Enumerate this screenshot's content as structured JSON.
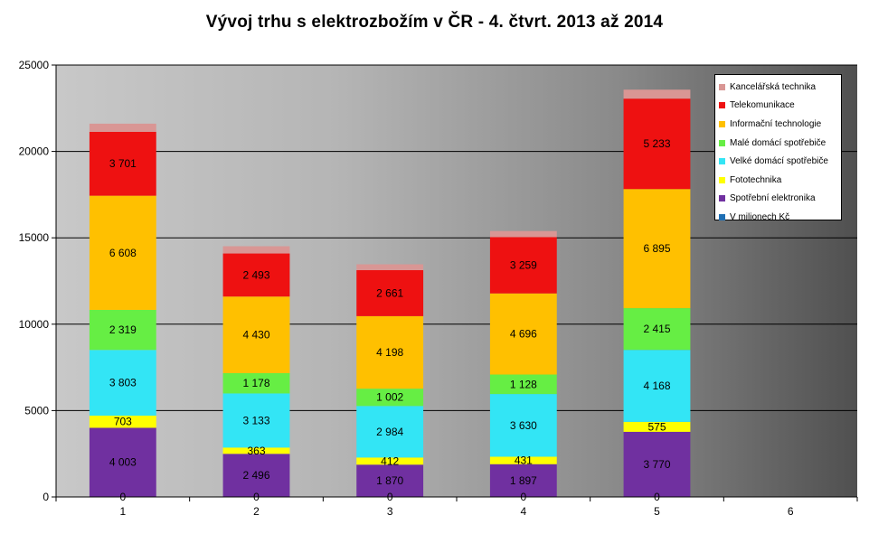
{
  "chart_data": {
    "type": "bar",
    "stacked": true,
    "title": "Vývoj trhu s elektrozbožím v ČR - 4. čtvrt. 2013 až 2014",
    "categories": [
      "1",
      "2",
      "3",
      "4",
      "5",
      "6"
    ],
    "ylim": [
      0,
      25000
    ],
    "yticks": [
      0,
      5000,
      10000,
      15000,
      20000,
      25000
    ],
    "ytick_labels": [
      "0",
      "5000",
      "10000",
      "15000",
      "20000",
      "25000"
    ],
    "grid": true,
    "legend_position": "top-right",
    "series": [
      {
        "name": "V milionech Kč",
        "color": "#1f6fb4",
        "values": [
          0,
          0,
          0,
          0,
          0,
          null
        ],
        "labels": [
          "0",
          "0",
          "0",
          "0",
          "0",
          ""
        ]
      },
      {
        "name": "Spotřební elektronika",
        "color": "#7030a0",
        "values": [
          4003,
          2496,
          1870,
          1897,
          3770,
          null
        ],
        "labels": [
          "4 003",
          "2 496",
          "1 870",
          "1 897",
          "3 770",
          ""
        ]
      },
      {
        "name": "Fototechnika",
        "color": "#ffff00",
        "values": [
          703,
          363,
          412,
          431,
          575,
          null
        ],
        "labels": [
          "703",
          "363",
          "412",
          "431",
          "575",
          ""
        ]
      },
      {
        "name": "Velké domácí spotřebiče",
        "color": "#33e5f5",
        "values": [
          3803,
          3133,
          2984,
          3630,
          4168,
          null
        ],
        "labels": [
          "3 803",
          "3 133",
          "2 984",
          "3 630",
          "4 168",
          ""
        ]
      },
      {
        "name": "Malé domácí spotřebiče",
        "color": "#66ee44",
        "values": [
          2319,
          1178,
          1002,
          1128,
          2415,
          null
        ],
        "labels": [
          "2 319",
          "1 178",
          "1 002",
          "1 128",
          "2 415",
          ""
        ]
      },
      {
        "name": "Informační technologie",
        "color": "#ffc000",
        "values": [
          6608,
          4430,
          4198,
          4696,
          6895,
          null
        ],
        "labels": [
          "6 608",
          "4 430",
          "4 198",
          "4 696",
          "6 895",
          ""
        ]
      },
      {
        "name": "Telekomunikace",
        "color": "#ee1111",
        "values": [
          3701,
          2493,
          2661,
          3259,
          5233,
          null
        ],
        "labels": [
          "3 701",
          "2 493",
          "2 661",
          "3 259",
          "5 233",
          ""
        ]
      },
      {
        "name": "Kancelářská technika",
        "color": "#d99694",
        "values": [
          470,
          420,
          340,
          350,
          520,
          null
        ],
        "labels": [
          "",
          "",
          "",
          "",
          "",
          ""
        ]
      }
    ],
    "legend_order": [
      "Kancelářská technika",
      "Telekomunikace",
      "Informační technologie",
      "Malé domácí spotřebiče",
      "Velké domácí spotřebiče",
      "Fototechnika",
      "Spotřební elektronika",
      "V milionech Kč"
    ]
  }
}
